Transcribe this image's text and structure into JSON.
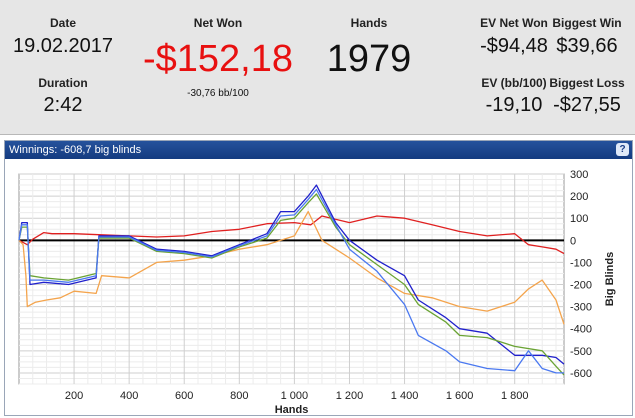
{
  "summary": {
    "date": {
      "label": "Date",
      "value": "19.02.2017"
    },
    "duration": {
      "label": "Duration",
      "value": "2:42"
    },
    "net_won": {
      "label": "Net Won",
      "value": "-$152,18",
      "sub": "-30,76 bb/100",
      "color": "#e81010"
    },
    "hands": {
      "label": "Hands",
      "value": "1979"
    },
    "ev_net_won": {
      "label": "EV Net Won",
      "value": "-$94,48"
    },
    "biggest_win": {
      "label": "Biggest Win",
      "value": "$39,66"
    },
    "ev_bb100": {
      "label": "EV (bb/100)",
      "value": "-19,10"
    },
    "biggest_loss": {
      "label": "Biggest Loss",
      "value": "-$27,55"
    }
  },
  "panel": {
    "title": "Winnings:  -608,7 big blinds",
    "help_glyph": "?"
  },
  "chart_data": {
    "type": "line",
    "xlabel": "Hands",
    "ylabel": "Big Blinds",
    "xlim": [
      0,
      1979
    ],
    "ylim": [
      -650,
      300
    ],
    "x_ticks": [
      200,
      400,
      600,
      800,
      1000,
      1200,
      1400,
      1600,
      1800
    ],
    "x_tick_labels": [
      "200",
      "400",
      "600",
      "800",
      "1 000",
      "1 200",
      "1 400",
      "1 600",
      "1 800"
    ],
    "y_ticks": [
      300,
      200,
      100,
      0,
      -100,
      -200,
      -300,
      -400,
      -500,
      -600
    ],
    "y_tick_labels": [
      "300",
      "200",
      "100",
      "0",
      "-100",
      "-200",
      "-300",
      "-400",
      "-500",
      "-600"
    ],
    "grid": true,
    "axis_position": "right",
    "series": [
      {
        "color": "#e02020",
        "points": [
          [
            0,
            0
          ],
          [
            30,
            -20
          ],
          [
            50,
            5
          ],
          [
            90,
            35
          ],
          [
            120,
            30
          ],
          [
            200,
            30
          ],
          [
            300,
            25
          ],
          [
            400,
            20
          ],
          [
            500,
            15
          ],
          [
            600,
            20
          ],
          [
            700,
            40
          ],
          [
            800,
            50
          ],
          [
            900,
            75
          ],
          [
            1000,
            80
          ],
          [
            1060,
            70
          ],
          [
            1100,
            110
          ],
          [
            1200,
            80
          ],
          [
            1300,
            110
          ],
          [
            1400,
            100
          ],
          [
            1500,
            70
          ],
          [
            1600,
            40
          ],
          [
            1700,
            20
          ],
          [
            1800,
            30
          ],
          [
            1850,
            -20
          ],
          [
            1900,
            -30
          ],
          [
            1950,
            -40
          ],
          [
            1979,
            -60
          ]
        ]
      },
      {
        "color": "#f4a44c",
        "points": [
          [
            0,
            0
          ],
          [
            15,
            -20
          ],
          [
            25,
            -160
          ],
          [
            30,
            -300
          ],
          [
            60,
            -280
          ],
          [
            100,
            -270
          ],
          [
            150,
            -260
          ],
          [
            200,
            -230
          ],
          [
            280,
            -240
          ],
          [
            300,
            -160
          ],
          [
            400,
            -170
          ],
          [
            500,
            -100
          ],
          [
            600,
            -90
          ],
          [
            700,
            -70
          ],
          [
            800,
            -40
          ],
          [
            900,
            -20
          ],
          [
            1000,
            20
          ],
          [
            1050,
            130
          ],
          [
            1100,
            0
          ],
          [
            1200,
            -80
          ],
          [
            1300,
            -170
          ],
          [
            1400,
            -240
          ],
          [
            1500,
            -260
          ],
          [
            1600,
            -300
          ],
          [
            1700,
            -320
          ],
          [
            1800,
            -280
          ],
          [
            1850,
            -220
          ],
          [
            1900,
            -180
          ],
          [
            1950,
            -270
          ],
          [
            1979,
            -380
          ]
        ]
      },
      {
        "color": "#2020cc",
        "points": [
          [
            0,
            0
          ],
          [
            10,
            80
          ],
          [
            30,
            80
          ],
          [
            40,
            -200
          ],
          [
            90,
            -190
          ],
          [
            180,
            -200
          ],
          [
            280,
            -170
          ],
          [
            290,
            20
          ],
          [
            400,
            20
          ],
          [
            500,
            -40
          ],
          [
            600,
            -50
          ],
          [
            700,
            -70
          ],
          [
            800,
            -20
          ],
          [
            900,
            30
          ],
          [
            950,
            130
          ],
          [
            1000,
            130
          ],
          [
            1050,
            200
          ],
          [
            1080,
            250
          ],
          [
            1150,
            80
          ],
          [
            1200,
            0
          ],
          [
            1300,
            -90
          ],
          [
            1400,
            -160
          ],
          [
            1450,
            -270
          ],
          [
            1550,
            -350
          ],
          [
            1600,
            -400
          ],
          [
            1700,
            -420
          ],
          [
            1800,
            -520
          ],
          [
            1900,
            -520
          ],
          [
            1950,
            -530
          ],
          [
            1979,
            -560
          ]
        ]
      },
      {
        "color": "#6aa334",
        "points": [
          [
            0,
            0
          ],
          [
            10,
            60
          ],
          [
            30,
            60
          ],
          [
            40,
            -160
          ],
          [
            90,
            -170
          ],
          [
            180,
            -180
          ],
          [
            280,
            -150
          ],
          [
            290,
            10
          ],
          [
            400,
            10
          ],
          [
            500,
            -50
          ],
          [
            600,
            -60
          ],
          [
            700,
            -80
          ],
          [
            800,
            -30
          ],
          [
            900,
            10
          ],
          [
            950,
            90
          ],
          [
            1000,
            100
          ],
          [
            1050,
            170
          ],
          [
            1080,
            210
          ],
          [
            1150,
            60
          ],
          [
            1200,
            -20
          ],
          [
            1300,
            -110
          ],
          [
            1400,
            -200
          ],
          [
            1450,
            -290
          ],
          [
            1550,
            -370
          ],
          [
            1600,
            -430
          ],
          [
            1700,
            -440
          ],
          [
            1800,
            -480
          ],
          [
            1900,
            -500
          ],
          [
            1950,
            -570
          ],
          [
            1979,
            -609
          ]
        ]
      },
      {
        "color": "#4a78f0",
        "points": [
          [
            0,
            0
          ],
          [
            10,
            70
          ],
          [
            30,
            70
          ],
          [
            40,
            -180
          ],
          [
            90,
            -180
          ],
          [
            180,
            -190
          ],
          [
            280,
            -160
          ],
          [
            290,
            15
          ],
          [
            400,
            15
          ],
          [
            500,
            -45
          ],
          [
            600,
            -55
          ],
          [
            700,
            -75
          ],
          [
            800,
            -25
          ],
          [
            900,
            20
          ],
          [
            950,
            110
          ],
          [
            1000,
            115
          ],
          [
            1050,
            185
          ],
          [
            1080,
            230
          ],
          [
            1150,
            70
          ],
          [
            1200,
            -40
          ],
          [
            1300,
            -140
          ],
          [
            1400,
            -290
          ],
          [
            1450,
            -430
          ],
          [
            1550,
            -500
          ],
          [
            1600,
            -550
          ],
          [
            1700,
            -580
          ],
          [
            1800,
            -590
          ],
          [
            1850,
            -500
          ],
          [
            1900,
            -580
          ],
          [
            1950,
            -600
          ],
          [
            1979,
            -600
          ]
        ]
      }
    ]
  }
}
